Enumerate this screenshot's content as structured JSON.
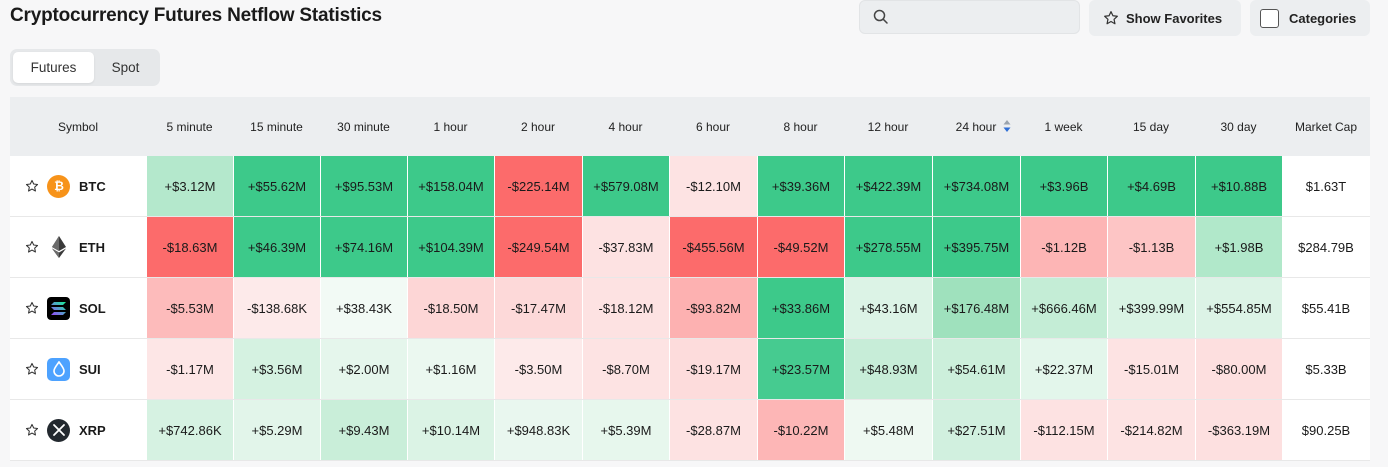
{
  "page_title": "Cryptocurrency Futures Netflow Statistics",
  "search": {
    "placeholder": ""
  },
  "buttons": {
    "favorites": "Show Favorites",
    "categories": "Categories"
  },
  "tabs": [
    {
      "label": "Futures",
      "active": true
    },
    {
      "label": "Spot",
      "active": false
    }
  ],
  "table": {
    "columns": [
      "Symbol",
      "5 minute",
      "15 minute",
      "30 minute",
      "1 hour",
      "2 hour",
      "4 hour",
      "6 hour",
      "8 hour",
      "12 hour",
      "24 hour",
      "1 week",
      "15 day",
      "30 day",
      "Market Cap"
    ],
    "sorted_column": "24 hour",
    "rows": [
      {
        "symbol": "BTC",
        "icon": "bitcoin-icon",
        "market_cap": "$1.63T",
        "values": [
          "+$3.12M",
          "+$55.62M",
          "+$95.53M",
          "+$158.04M",
          "-$225.14M",
          "+$579.08M",
          "-$12.10M",
          "+$39.36M",
          "+$422.39M",
          "+$734.08M",
          "+$3.96B",
          "+$4.69B",
          "+$10.88B"
        ],
        "colors": [
          "#b4e8cc",
          "#3dc98a",
          "#3dc98a",
          "#3dc98a",
          "#fc6b6b",
          "#3dc98a",
          "#fde3e3",
          "#3dc98a",
          "#3dc98a",
          "#3dc98a",
          "#3dc98a",
          "#3dc98a",
          "#3dc98a"
        ]
      },
      {
        "symbol": "ETH",
        "icon": "ethereum-icon",
        "market_cap": "$284.79B",
        "values": [
          "-$18.63M",
          "+$46.39M",
          "+$74.16M",
          "+$104.39M",
          "-$249.54M",
          "-$37.83M",
          "-$455.56M",
          "-$49.52M",
          "+$278.55M",
          "+$395.75M",
          "-$1.12B",
          "-$1.13B",
          "+$1.98B"
        ],
        "colors": [
          "#fc6b6b",
          "#3dc98a",
          "#3dc98a",
          "#3dc98a",
          "#fc6b6b",
          "#fde2e2",
          "#fc6b6b",
          "#fc6b6b",
          "#3dc98a",
          "#3dc98a",
          "#fdb5b5",
          "#fdc5c5",
          "#b1e8ca"
        ]
      },
      {
        "symbol": "SOL",
        "icon": "solana-icon",
        "market_cap": "$55.41B",
        "values": [
          "-$5.53M",
          "-$138.68K",
          "+$38.43K",
          "-$18.50M",
          "-$17.47M",
          "-$18.12M",
          "-$93.82M",
          "+$33.86M",
          "+$43.16M",
          "+$176.48M",
          "+$666.46M",
          "+$399.99M",
          "+$554.85M"
        ],
        "colors": [
          "#fdbbbb",
          "#fdeaea",
          "#f2faf5",
          "#fdd6d6",
          "#fdd9d9",
          "#fde2e2",
          "#fdb1b1",
          "#3dc98a",
          "#dcf3e6",
          "#9fe1bd",
          "#c4edd6",
          "#d9f3e4",
          "#dcf3e6"
        ]
      },
      {
        "symbol": "SUI",
        "icon": "sui-icon",
        "market_cap": "$5.33B",
        "values": [
          "-$1.17M",
          "+$3.56M",
          "+$2.00M",
          "+$1.16M",
          "-$3.50M",
          "-$8.70M",
          "-$19.17M",
          "+$23.57M",
          "+$48.93M",
          "+$54.61M",
          "+$22.37M",
          "-$15.01M",
          "-$80.00M"
        ],
        "colors": [
          "#fde6e6",
          "#d5f2e1",
          "#e5f6ec",
          "#ebf8f0",
          "#fdeaea",
          "#fde3e3",
          "#fddcdc",
          "#46cb90",
          "#c7edd8",
          "#ccefdb",
          "#e3f6eb",
          "#fde3e3",
          "#fddfdf"
        ]
      },
      {
        "symbol": "XRP",
        "icon": "xrp-icon",
        "market_cap": "$90.25B",
        "values": [
          "+$742.86K",
          "+$5.29M",
          "+$9.43M",
          "+$10.14M",
          "+$948.83K",
          "+$5.39M",
          "-$28.87M",
          "-$10.22M",
          "+$5.48M",
          "+$27.51M",
          "-$112.15M",
          "-$214.82M",
          "-$363.19M"
        ],
        "colors": [
          "#d6f2e2",
          "#e2f5ea",
          "#c9eed9",
          "#dbf3e5",
          "#e9f7ef",
          "#e7f7ed",
          "#fde2e2",
          "#fdb6b6",
          "#eef9f2",
          "#d1f0df",
          "#fde2e2",
          "#fde3e3",
          "#fde0e0"
        ]
      }
    ]
  }
}
